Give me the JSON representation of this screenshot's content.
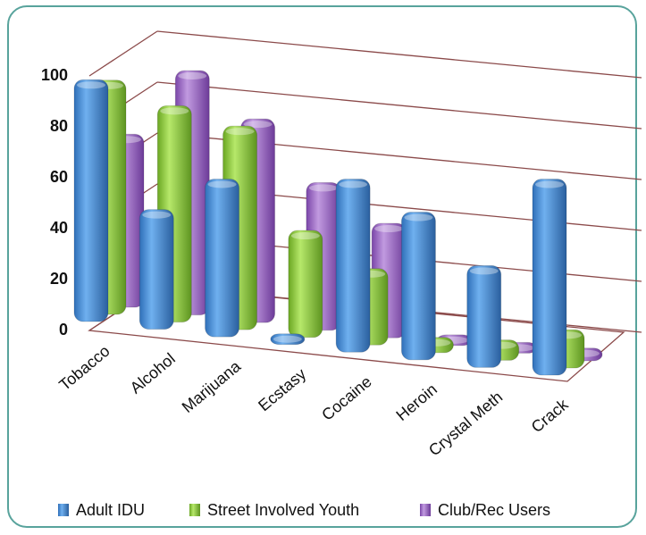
{
  "chart_data": {
    "type": "bar",
    "title": "",
    "xlabel": "",
    "ylabel": "",
    "ylim": [
      0,
      100
    ],
    "yticks": [
      "0",
      "20",
      "40",
      "60",
      "80",
      "100"
    ],
    "categories": [
      "Tobacco",
      "Alcohol",
      "Marijuana",
      "Ecstasy",
      "Cocaine",
      "Heroin",
      "Crystal Meth",
      "Crack"
    ],
    "series": [
      {
        "name": "Adult IDU",
        "color": "#4a90d9",
        "values": [
          95,
          47,
          62,
          3,
          68,
          58,
          40,
          77
        ]
      },
      {
        "name": "Street Involved Youth",
        "color": "#8fcf3c",
        "values": [
          92,
          85,
          80,
          42,
          30,
          6,
          8,
          15
        ]
      },
      {
        "name": "Club/Rec Users",
        "color": "#9a62c4",
        "values": [
          68,
          96,
          80,
          58,
          45,
          3,
          2,
          5
        ]
      }
    ],
    "grid": true,
    "legend_position": "bottom",
    "style": "3d-cylinder"
  }
}
